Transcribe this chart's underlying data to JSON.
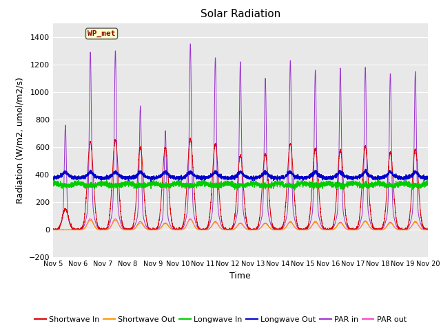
{
  "title": "Solar Radiation",
  "ylabel": "Radiation (W/m2, umol/m2/s)",
  "xlabel": "Time",
  "ylim": [
    -200,
    1500
  ],
  "yticks": [
    -200,
    0,
    200,
    400,
    600,
    800,
    1000,
    1200,
    1400
  ],
  "label_text": "WP_met",
  "label_bg": "#ffffcc",
  "label_border": "#8b0000",
  "bg_color": "#e8e8e8",
  "line_colors": {
    "sw_in": "#dd0000",
    "sw_out": "#ff9900",
    "lw_in": "#00cc00",
    "lw_out": "#0000cc",
    "par_in": "#9933cc",
    "par_out": "#ff44cc"
  },
  "legend_labels": [
    "Shortwave In",
    "Shortwave Out",
    "Longwave In",
    "Longwave Out",
    "PAR in",
    "PAR out"
  ],
  "n_days": 15,
  "start_day": 5,
  "points_per_day": 288,
  "lw_in_base": 340,
  "lw_out_base": 375,
  "par_in_peaks": [
    760,
    1290,
    1300,
    900,
    720,
    1350,
    1250,
    1220,
    1100,
    1230,
    1160,
    1175,
    1180,
    1135,
    1150
  ],
  "sw_in_peaks": [
    150,
    640,
    650,
    600,
    600,
    660,
    620,
    540,
    550,
    625,
    590,
    580,
    605,
    560,
    585
  ],
  "par_out_peaks": [
    0,
    80,
    80,
    60,
    50,
    80,
    60,
    50,
    50,
    60,
    60,
    55,
    65,
    55,
    60
  ],
  "sw_out_peaks": [
    0,
    70,
    70,
    50,
    45,
    75,
    55,
    45,
    45,
    55,
    55,
    50,
    60,
    50,
    55
  ],
  "title_fontsize": 11,
  "axis_fontsize": 9,
  "tick_fontsize": 8,
  "legend_fontsize": 8
}
